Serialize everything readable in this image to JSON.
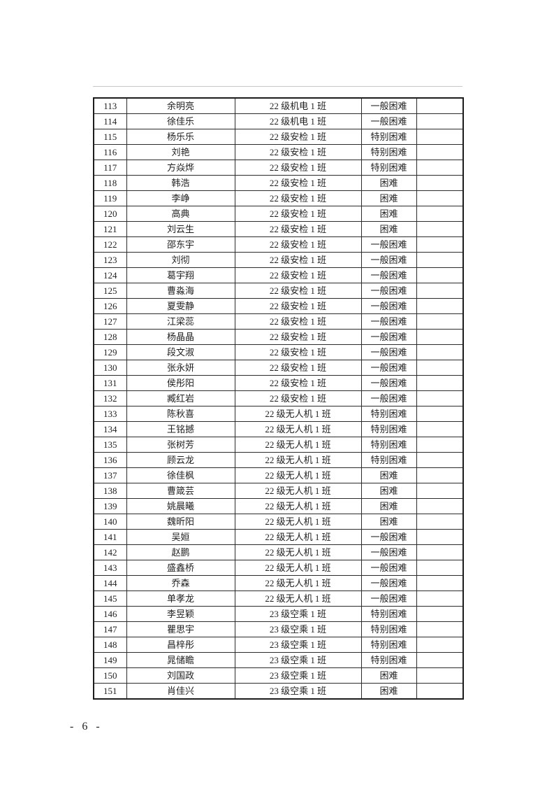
{
  "document": {
    "page_label": "- 6 -"
  },
  "colors": {
    "background": "#ffffff",
    "text": "#1f1f1f",
    "table_border": "#2b2b2b"
  },
  "table": {
    "column_keys": [
      "index",
      "name",
      "class",
      "difficulty_level",
      "remark"
    ],
    "rows": [
      [
        "113",
        "余明亮",
        "22 级机电 1 班",
        "一般困难",
        ""
      ],
      [
        "114",
        "徐佳乐",
        "22 级机电 1 班",
        "一般困难",
        ""
      ],
      [
        "115",
        "杨乐乐",
        "22 级安检 1 班",
        "特别困难",
        ""
      ],
      [
        "116",
        "刘艳",
        "22 级安检 1 班",
        "特别困难",
        ""
      ],
      [
        "117",
        "方焱烨",
        "22 级安检 1 班",
        "特别困难",
        ""
      ],
      [
        "118",
        "韩浩",
        "22 级安检 1 班",
        "困难",
        ""
      ],
      [
        "119",
        "李峥",
        "22 级安检 1 班",
        "困难",
        ""
      ],
      [
        "120",
        "高典",
        "22 级安检 1 班",
        "困难",
        ""
      ],
      [
        "121",
        "刘云生",
        "22 级安检 1 班",
        "困难",
        ""
      ],
      [
        "122",
        "邵东宇",
        "22 级安检 1 班",
        "一般困难",
        ""
      ],
      [
        "123",
        "刘彻",
        "22 级安检 1 班",
        "一般困难",
        ""
      ],
      [
        "124",
        "葛宇翔",
        "22 级安检 1 班",
        "一般困难",
        ""
      ],
      [
        "125",
        "曹淼海",
        "22 级安检 1 班",
        "一般困难",
        ""
      ],
      [
        "126",
        "夏雯静",
        "22 级安检 1 班",
        "一般困难",
        ""
      ],
      [
        "127",
        "江梁蕊",
        "22 级安检 1 班",
        "一般困难",
        ""
      ],
      [
        "128",
        "杨晶晶",
        "22 级安检 1 班",
        "一般困难",
        ""
      ],
      [
        "129",
        "段文淑",
        "22 级安检 1 班",
        "一般困难",
        ""
      ],
      [
        "130",
        "张永妍",
        "22 级安检 1 班",
        "一般困难",
        ""
      ],
      [
        "131",
        "侯彤阳",
        "22 级安检 1 班",
        "一般困难",
        ""
      ],
      [
        "132",
        "臧红岩",
        "22 级安检 1 班",
        "一般困难",
        ""
      ],
      [
        "133",
        "陈秋喜",
        "22 级无人机 1 班",
        "特别困难",
        ""
      ],
      [
        "134",
        "王铭撼",
        "22 级无人机 1 班",
        "特别困难",
        ""
      ],
      [
        "135",
        "张树芳",
        "22 级无人机 1 班",
        "特别困难",
        ""
      ],
      [
        "136",
        "顾云龙",
        "22 级无人机 1 班",
        "特别困难",
        ""
      ],
      [
        "137",
        "徐佳枫",
        "22 级无人机 1 班",
        "困难",
        ""
      ],
      [
        "138",
        "曹箴芸",
        "22 级无人机 1 班",
        "困难",
        ""
      ],
      [
        "139",
        "姚晨曦",
        "22 级无人机 1 班",
        "困难",
        ""
      ],
      [
        "140",
        "魏昕阳",
        "22 级无人机 1 班",
        "困难",
        ""
      ],
      [
        "141",
        "吴姮",
        "22 级无人机 1 班",
        "一般困难",
        ""
      ],
      [
        "142",
        "赵鹏",
        "22 级无人机 1 班",
        "一般困难",
        ""
      ],
      [
        "143",
        "盛鑫桥",
        "22 级无人机 1 班",
        "一般困难",
        ""
      ],
      [
        "144",
        "乔森",
        "22 级无人机 1 班",
        "一般困难",
        ""
      ],
      [
        "145",
        "单孝龙",
        "22 级无人机 1 班",
        "一般困难",
        ""
      ],
      [
        "146",
        "李昱颖",
        "23 级空乘 1 班",
        "特别困难",
        ""
      ],
      [
        "147",
        "瞿思宇",
        "23 级空乘 1 班",
        "特别困难",
        ""
      ],
      [
        "148",
        "昌梓彤",
        "23 级空乘 1 班",
        "特别困难",
        ""
      ],
      [
        "149",
        "晁储瞻",
        "23 级空乘 1 班",
        "特别困难",
        ""
      ],
      [
        "150",
        "刘国政",
        "23 级空乘 1 班",
        "困难",
        ""
      ],
      [
        "151",
        "肖佳兴",
        "23 级空乘 1 班",
        "困难",
        ""
      ]
    ]
  }
}
